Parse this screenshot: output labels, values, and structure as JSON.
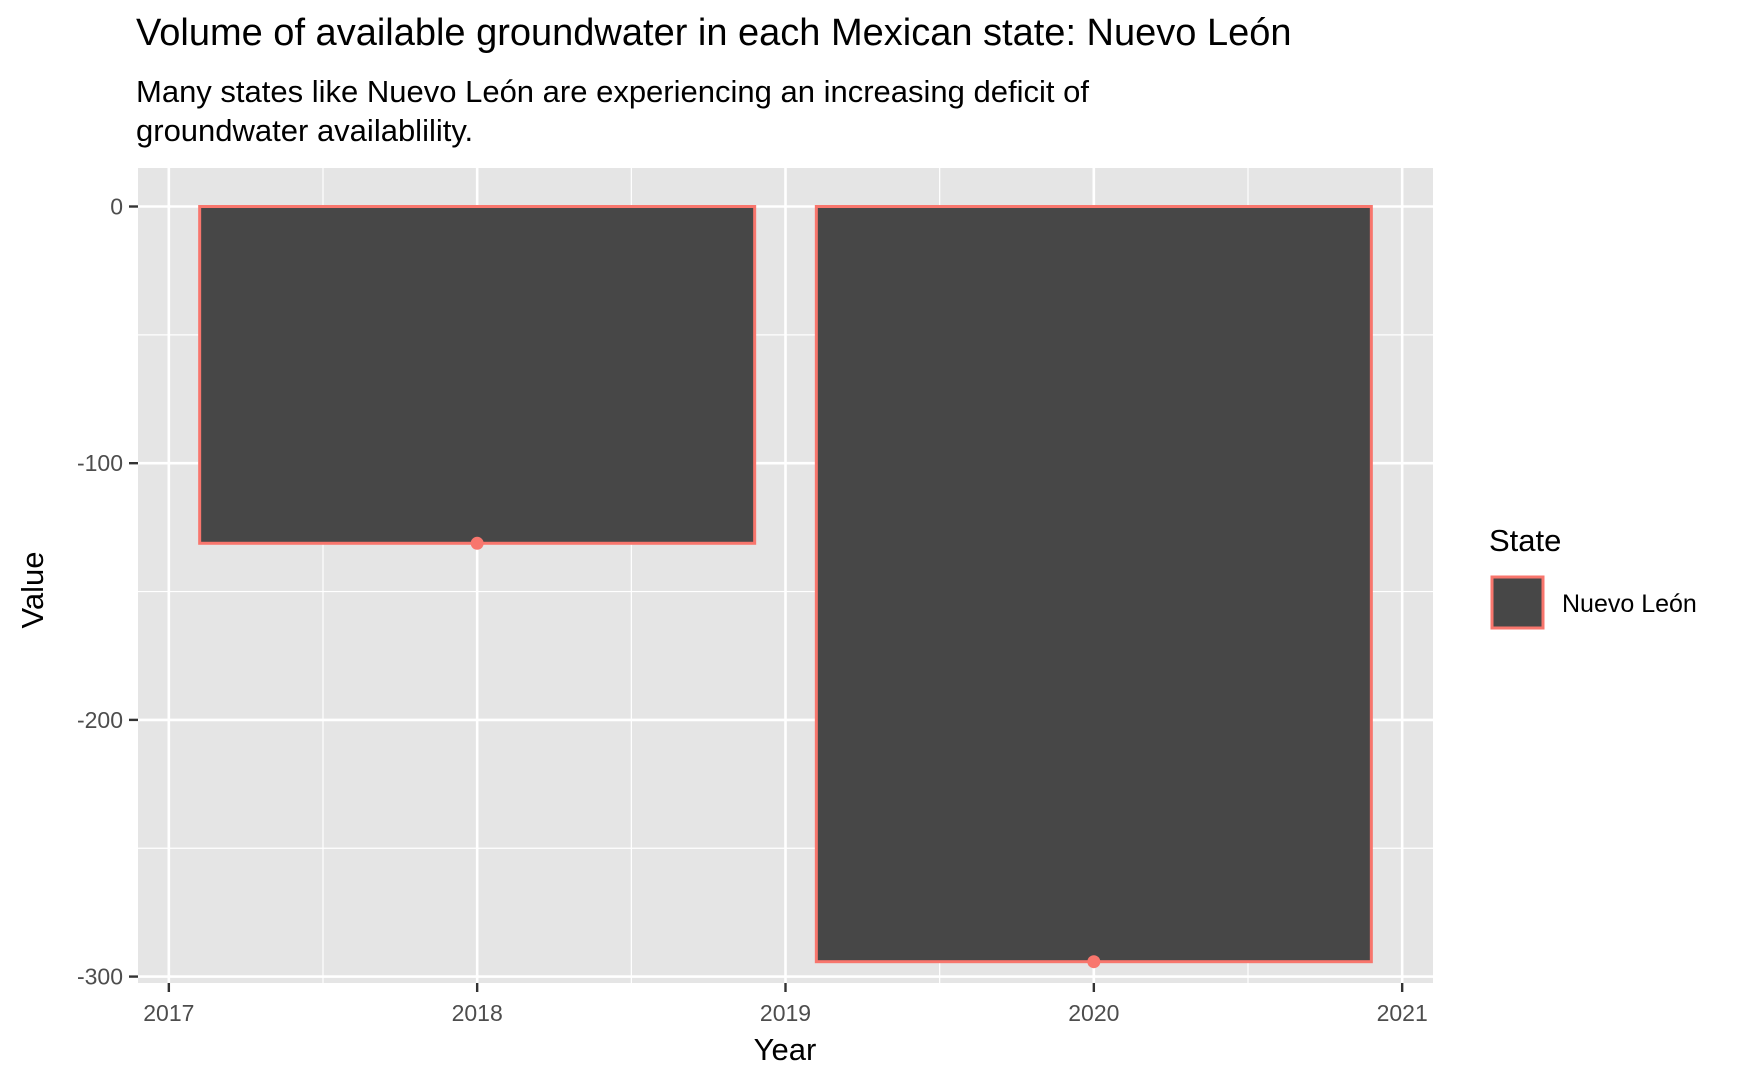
{
  "chart_data": {
    "type": "bar",
    "title": "Volume of available groundwater in each Mexican state: Nuevo León",
    "subtitle_lines": [
      "Many states like Nuevo León are experiencing an increasing deficit of",
      "groundwater availablility."
    ],
    "xlabel": "Year",
    "ylabel": "Value",
    "xlim": [
      2016.9,
      2021.1
    ],
    "ylim": [
      -302.5,
      15
    ],
    "x_ticks": [
      2017,
      2018,
      2019,
      2020,
      2021
    ],
    "y_ticks": [
      0,
      -100,
      -200,
      -300
    ],
    "y_tick_labels": [
      "0",
      "-100",
      "-200",
      "-300"
    ],
    "grid": true,
    "legend_position": "right",
    "legend_title": "State",
    "series": [
      {
        "name": "Nuevo León",
        "x": [
          2018,
          2020
        ],
        "values": [
          -131.2,
          -294.2
        ],
        "fill_color": "#474747",
        "outline_color": "#f8766d"
      }
    ],
    "bar_width_years": 1.8,
    "points_shown": true,
    "panel_background": "#e5e5e5",
    "grid_color": "#ffffff"
  }
}
